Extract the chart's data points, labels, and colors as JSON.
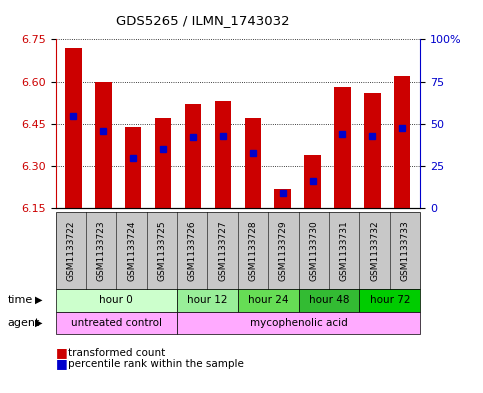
{
  "title": "GDS5265 / ILMN_1743032",
  "samples": [
    "GSM1133722",
    "GSM1133723",
    "GSM1133724",
    "GSM1133725",
    "GSM1133726",
    "GSM1133727",
    "GSM1133728",
    "GSM1133729",
    "GSM1133730",
    "GSM1133731",
    "GSM1133732",
    "GSM1133733"
  ],
  "bar_bottom": 6.15,
  "transformed_counts": [
    6.72,
    6.6,
    6.44,
    6.47,
    6.52,
    6.53,
    6.47,
    6.22,
    6.34,
    6.58,
    6.56,
    6.62
  ],
  "percentile_ranks": [
    0.545,
    0.46,
    0.295,
    0.35,
    0.42,
    0.43,
    0.325,
    0.09,
    0.16,
    0.44,
    0.43,
    0.475
  ],
  "ylim_left": [
    6.15,
    6.75
  ],
  "ylim_right": [
    0,
    100
  ],
  "yticks_left": [
    6.15,
    6.3,
    6.45,
    6.6,
    6.75
  ],
  "yticks_right": [
    0,
    25,
    50,
    75,
    100
  ],
  "ytick_labels_right": [
    "0",
    "25",
    "50",
    "75",
    "100%"
  ],
  "bar_color": "#cc0000",
  "percentile_color": "#0000cc",
  "grid_color": "#000000",
  "time_groups": [
    {
      "label": "hour 0",
      "start": 0,
      "end": 3,
      "color": "#ccffcc"
    },
    {
      "label": "hour 12",
      "start": 4,
      "end": 5,
      "color": "#99ee99"
    },
    {
      "label": "hour 24",
      "start": 6,
      "end": 7,
      "color": "#66dd55"
    },
    {
      "label": "hour 48",
      "start": 8,
      "end": 9,
      "color": "#33bb33"
    },
    {
      "label": "hour 72",
      "start": 10,
      "end": 11,
      "color": "#00cc00"
    }
  ],
  "agent_groups": [
    {
      "label": "untreated control",
      "start": 0,
      "end": 3,
      "color": "#ffaaff"
    },
    {
      "label": "mycophenolic acid",
      "start": 4,
      "end": 11,
      "color": "#ffaaff"
    }
  ],
  "left_axis_color": "#cc0000",
  "right_axis_color": "#0000cc",
  "background_color": "#ffffff",
  "bar_width": 0.55,
  "sample_bg_color": "#c8c8c8"
}
